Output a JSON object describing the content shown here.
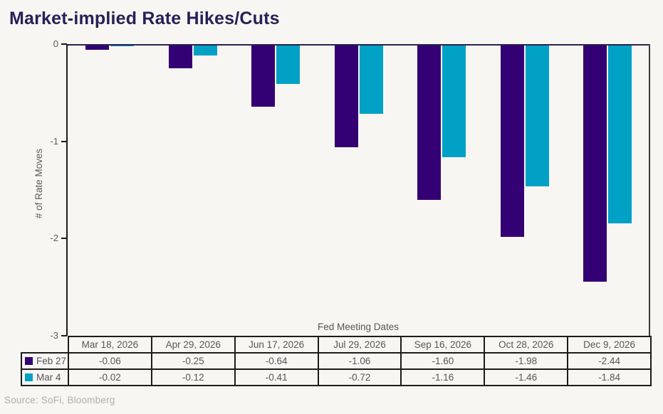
{
  "title": "Market-implied Rate Hikes/Cuts",
  "source": "Source: SoFi, Bloomberg",
  "colors": {
    "background": "#f8f6f2",
    "title_text": "#262159",
    "axis_text": "#5a5b5f",
    "table_border": "#1c1c1c",
    "series_feb27": "#330173",
    "series_mar4": "#00a1c5"
  },
  "chart_data": {
    "type": "bar",
    "title": "Market-implied Rate Hikes/Cuts",
    "categories": [
      "Mar 18, 2026",
      "Apr 29, 2026",
      "Jun 17, 2026",
      "Jul 29, 2026",
      "Sep 16, 2026",
      "Oct 28, 2026",
      "Dec 9, 2026"
    ],
    "series": [
      {
        "name": "Feb 27",
        "color": "#330173",
        "values": [
          -0.06,
          -0.25,
          -0.64,
          -1.06,
          -1.6,
          -1.98,
          -2.44
        ]
      },
      {
        "name": "Mar 4",
        "color": "#00a1c5",
        "values": [
          -0.02,
          -0.12,
          -0.41,
          -0.72,
          -1.16,
          -1.46,
          -1.84
        ]
      }
    ],
    "xlabel": "Fed Meeting Dates",
    "ylabel": "# of Rate Moves",
    "ylim": [
      -3,
      0
    ],
    "yticks": [
      0,
      -1,
      -2,
      -3
    ],
    "grid": false,
    "legend_position": "table-left-stub"
  }
}
